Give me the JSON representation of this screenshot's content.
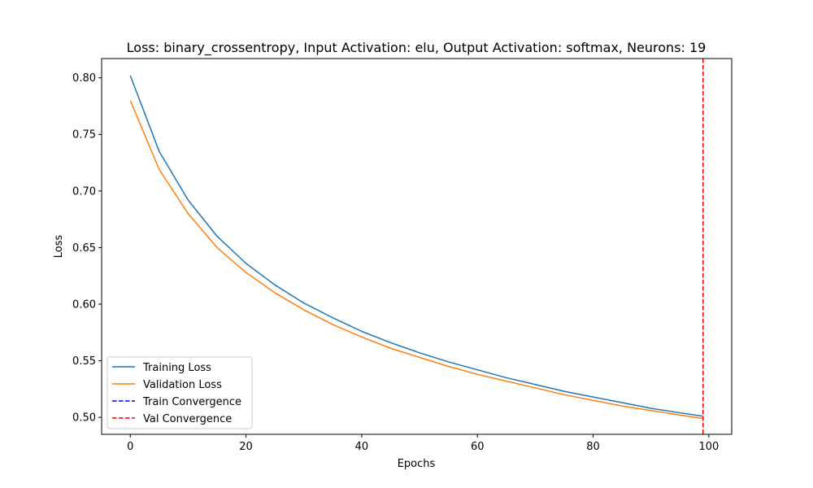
{
  "chart_data": {
    "type": "line",
    "title": "Loss: binary_crossentropy, Input Activation: elu, Output Activation: softmax, Neurons: 19",
    "xlabel": "Epochs",
    "ylabel": "Loss",
    "xlim": [
      -4.95,
      103.95
    ],
    "ylim": [
      0.485,
      0.817
    ],
    "x_ticks": [
      0,
      20,
      40,
      60,
      80,
      100
    ],
    "y_ticks": [
      0.5,
      0.55,
      0.6,
      0.65,
      0.7,
      0.75,
      0.8
    ],
    "x_tick_labels": [
      "0",
      "20",
      "40",
      "60",
      "80",
      "100"
    ],
    "y_tick_labels": [
      "0.50",
      "0.55",
      "0.60",
      "0.65",
      "0.70",
      "0.75",
      "0.80"
    ],
    "grid": false,
    "legend_position": "lower-left",
    "series": [
      {
        "name": "Training Loss",
        "color": "#1f77b4",
        "style": "solid",
        "x": [
          0,
          5,
          10,
          15,
          20,
          25,
          30,
          35,
          40,
          45,
          50,
          55,
          60,
          65,
          70,
          75,
          80,
          85,
          90,
          95,
          99
        ],
        "y": [
          0.802,
          0.735,
          0.692,
          0.66,
          0.636,
          0.617,
          0.601,
          0.588,
          0.576,
          0.566,
          0.557,
          0.549,
          0.542,
          0.535,
          0.529,
          0.523,
          0.518,
          0.513,
          0.508,
          0.504,
          0.501
        ]
      },
      {
        "name": "Validation Loss",
        "color": "#ff7f0e",
        "style": "solid",
        "x": [
          0,
          5,
          10,
          15,
          20,
          25,
          30,
          35,
          40,
          45,
          50,
          55,
          60,
          65,
          70,
          75,
          80,
          85,
          90,
          95,
          99
        ],
        "y": [
          0.78,
          0.719,
          0.68,
          0.65,
          0.628,
          0.61,
          0.595,
          0.582,
          0.571,
          0.561,
          0.553,
          0.545,
          0.538,
          0.532,
          0.526,
          0.52,
          0.515,
          0.51,
          0.506,
          0.502,
          0.499
        ]
      }
    ],
    "vlines": [
      {
        "name": "Train Convergence",
        "color": "#0000ff",
        "style": "dashed",
        "x": 99
      },
      {
        "name": "Val Convergence",
        "color": "#ff0000",
        "style": "dashed",
        "x": 99
      }
    ]
  }
}
